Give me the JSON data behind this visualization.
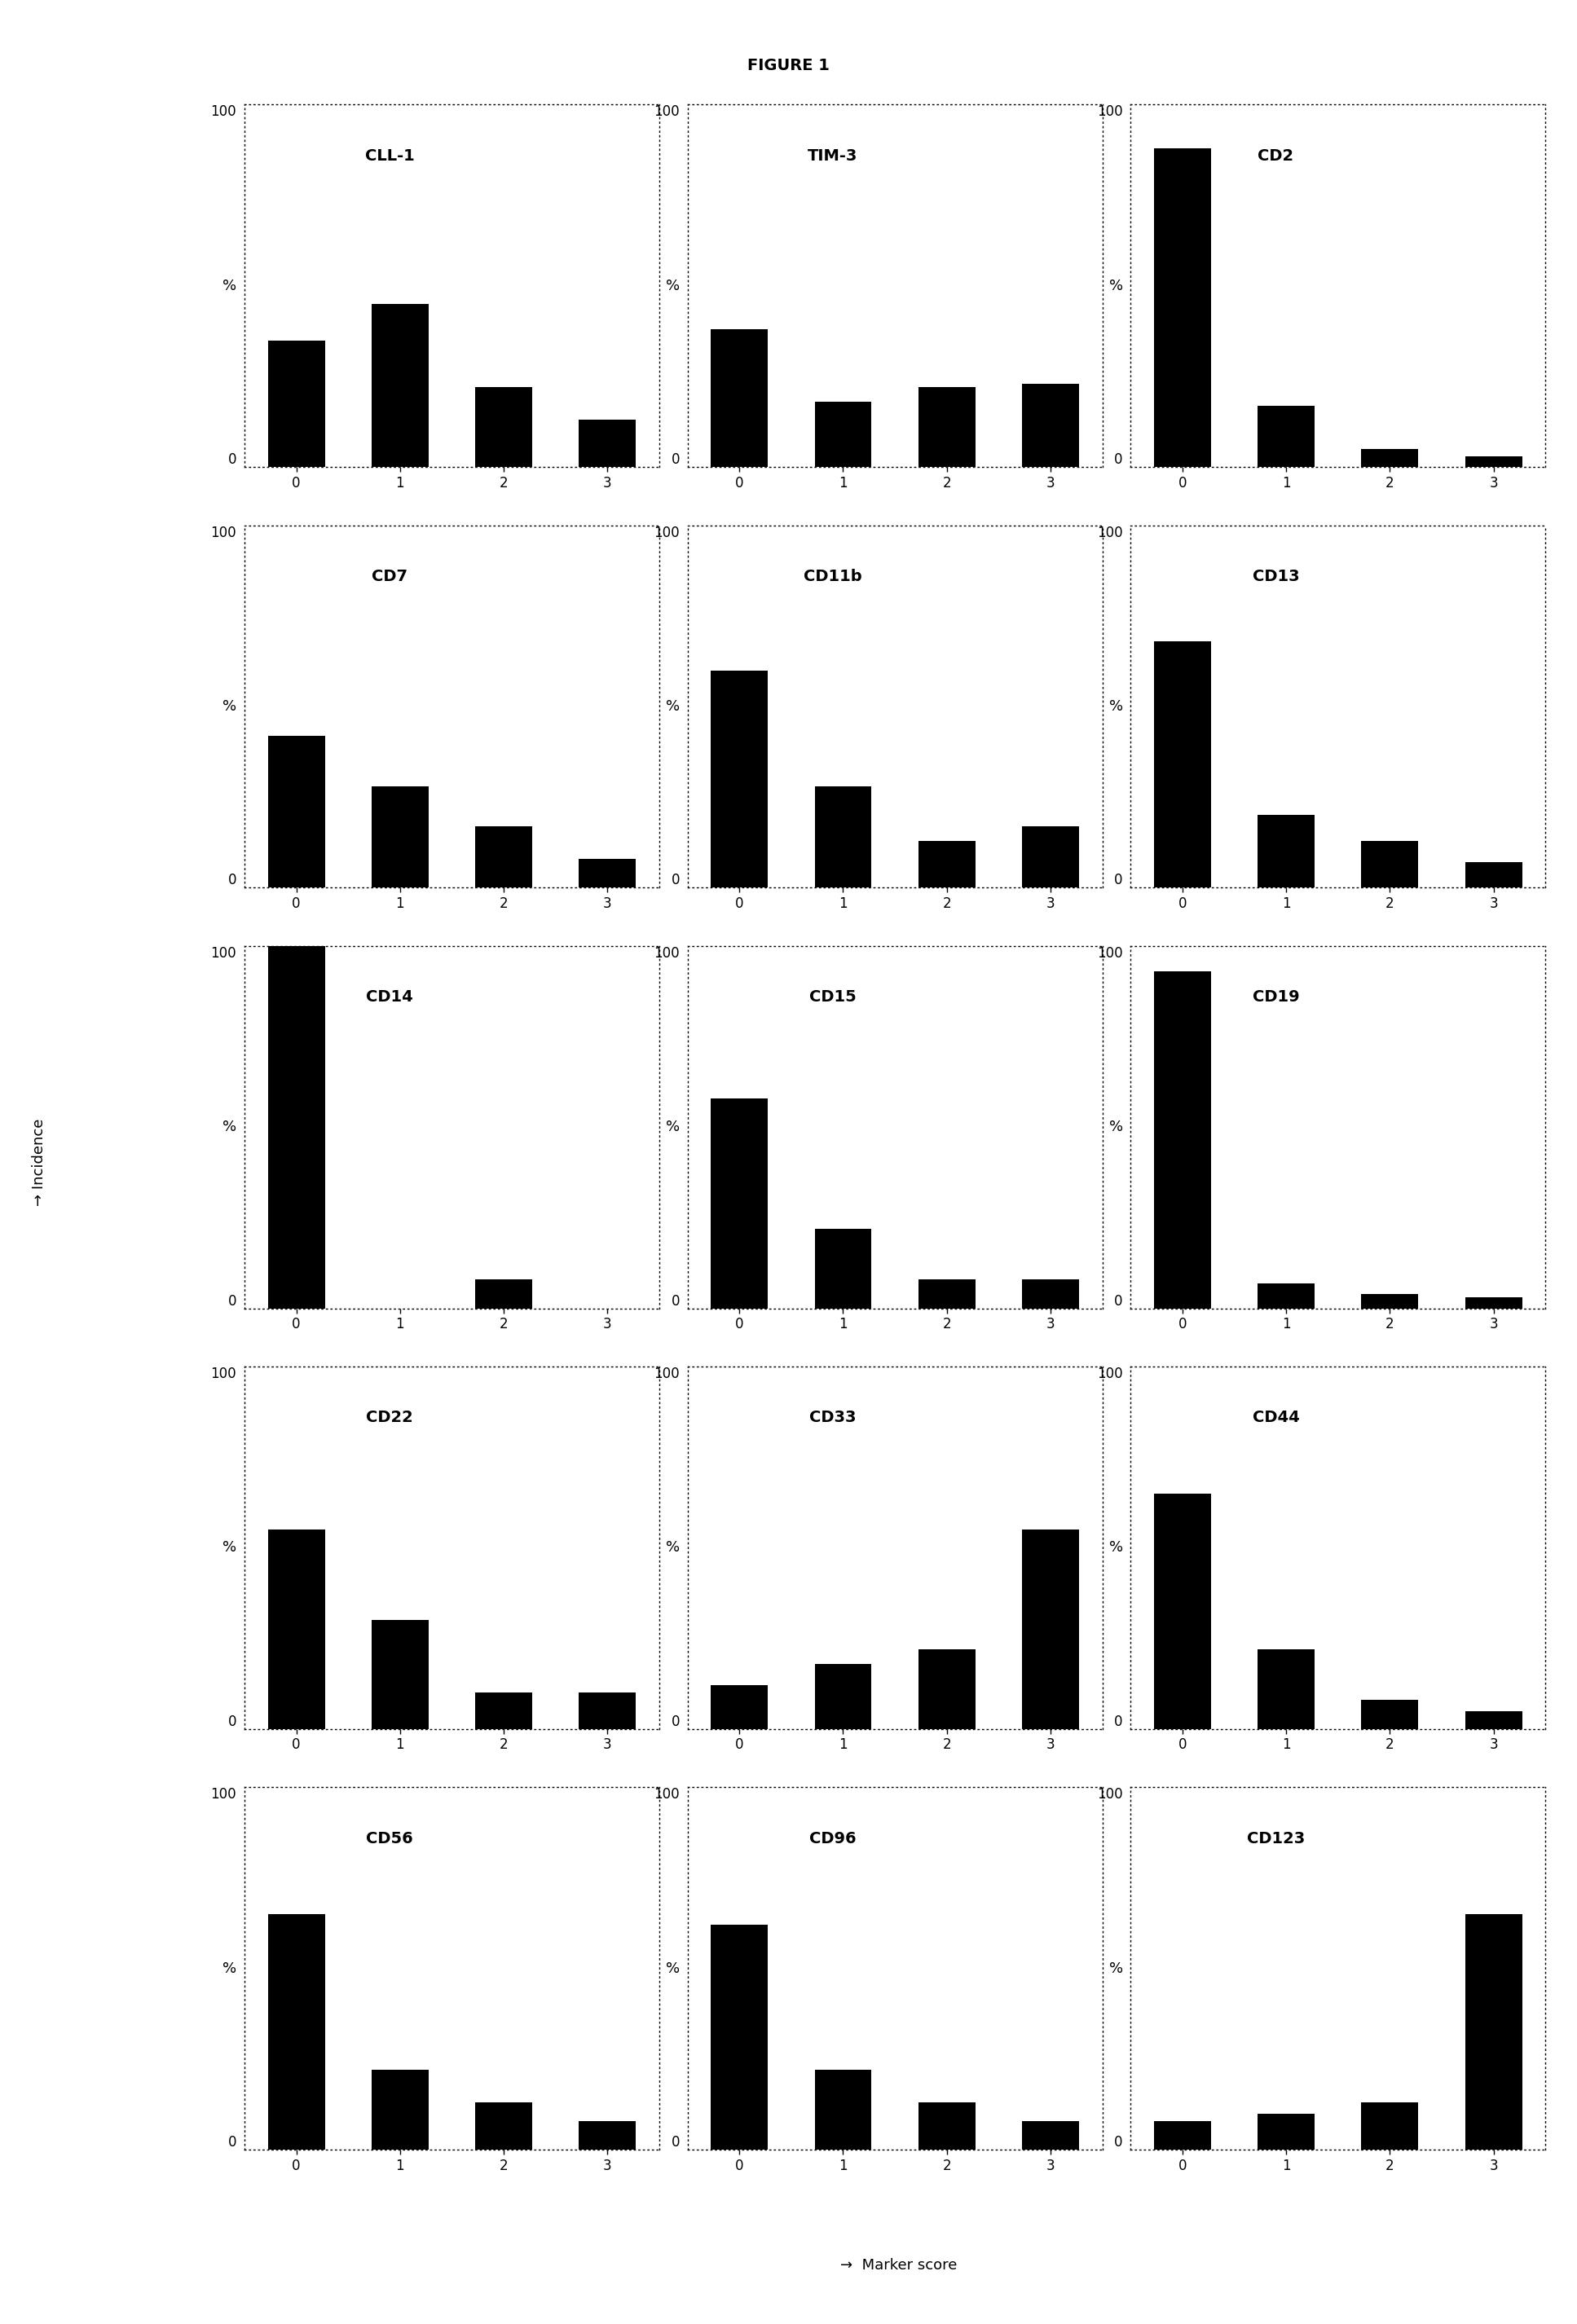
{
  "fig_title": "FIGURE 1",
  "charts": [
    {
      "name": "CLL-1",
      "values": [
        35,
        45,
        22,
        13
      ]
    },
    {
      "name": "TIM-3",
      "values": [
        38,
        18,
        22,
        23
      ]
    },
    {
      "name": "CD2",
      "values": [
        88,
        17,
        5,
        3
      ]
    },
    {
      "name": "CD7",
      "values": [
        42,
        28,
        17,
        8
      ]
    },
    {
      "name": "CD11b",
      "values": [
        60,
        28,
        13,
        17
      ]
    },
    {
      "name": "CD13",
      "values": [
        68,
        20,
        13,
        7
      ]
    },
    {
      "name": "CD14",
      "values": [
        100,
        0,
        8,
        0
      ]
    },
    {
      "name": "CD15",
      "values": [
        58,
        22,
        8,
        8
      ]
    },
    {
      "name": "CD19",
      "values": [
        93,
        7,
        4,
        3
      ]
    },
    {
      "name": "CD22",
      "values": [
        55,
        30,
        10,
        10
      ]
    },
    {
      "name": "CD33",
      "values": [
        12,
        18,
        22,
        55
      ]
    },
    {
      "name": "CD44",
      "values": [
        65,
        22,
        8,
        5
      ]
    },
    {
      "name": "CD56",
      "values": [
        65,
        22,
        13,
        8
      ]
    },
    {
      "name": "CD96",
      "values": [
        62,
        22,
        13,
        8
      ]
    },
    {
      "name": "CD123",
      "values": [
        8,
        10,
        13,
        65
      ]
    }
  ],
  "bar_color": "#000000",
  "ylim": [
    0,
    100
  ],
  "bar_width": 0.55,
  "xlabel": "→  Marker score",
  "ylabel_incidence": "→ Incidence",
  "nrows": 5,
  "ncols": 3,
  "title_fontsize": 14,
  "label_fontsize": 13,
  "tick_fontsize": 12,
  "name_fontsize": 14
}
